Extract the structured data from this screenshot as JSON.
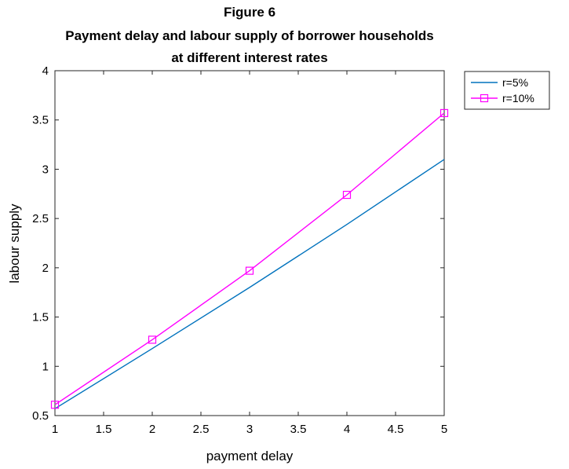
{
  "figure": {
    "title_lines": [
      "Figure 6",
      "Payment delay and labour supply of borrower households",
      "at different interest rates"
    ]
  },
  "chart_data": {
    "type": "line",
    "title": "Figure 6 Payment delay and labour supply of borrower households at different interest rates",
    "xlabel": "payment delay",
    "ylabel": "labour supply",
    "xlim": [
      1,
      5
    ],
    "ylim": [
      0.5,
      4
    ],
    "xticks": [
      1,
      1.5,
      2,
      2.5,
      3,
      3.5,
      4,
      4.5,
      5
    ],
    "yticks": [
      0.5,
      1,
      1.5,
      2,
      2.5,
      3,
      3.5,
      4
    ],
    "xtick_labels": [
      "1",
      "1.5",
      "2",
      "2.5",
      "3",
      "3.5",
      "4",
      "4.5",
      "5"
    ],
    "ytick_labels": [
      "0.5",
      "1",
      "1.5",
      "2",
      "2.5",
      "3",
      "3.5",
      "4"
    ],
    "grid": false,
    "legend_position": "outside-top-right",
    "series": [
      {
        "name": "r=5%",
        "color": "#0072bd",
        "marker": "none",
        "x": [
          1,
          2,
          3,
          4,
          5
        ],
        "values": [
          0.57,
          1.18,
          1.8,
          2.44,
          3.1
        ]
      },
      {
        "name": "r=10%",
        "color": "#ff00ff",
        "marker": "square",
        "x": [
          1,
          2,
          3,
          4,
          5
        ],
        "values": [
          0.61,
          1.27,
          1.97,
          2.74,
          3.57
        ]
      }
    ]
  }
}
